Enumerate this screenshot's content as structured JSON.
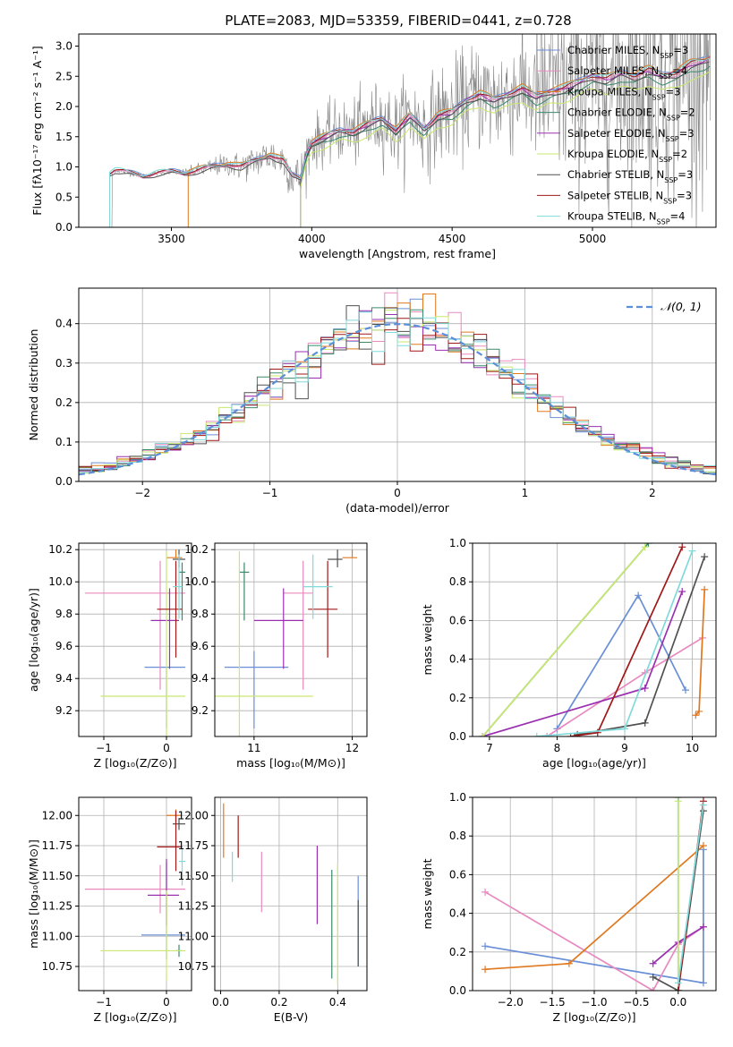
{
  "figure": {
    "title": "PLATE=2083, MJD=53359, FIBERID=0441, z=0.728"
  },
  "colors": {
    "series": [
      "#6a8fd6",
      "#e88abf",
      "#e07820",
      "#3a8a6a",
      "#9a30b0",
      "#c8e870",
      "#505050",
      "#a01818",
      "#80dada"
    ],
    "data_gray": "#888888",
    "normal": "#5b8fd8",
    "grid": "#b0b0b0"
  },
  "legend": [
    {
      "base": "Chabrier MILES, N",
      "sub": "SSP",
      "suffix": "=3"
    },
    {
      "base": "Salpeter MILES, N",
      "sub": "SSP",
      "suffix": "=4"
    },
    {
      "base": "Kroupa MILES, N",
      "sub": "SSP",
      "suffix": "=3"
    },
    {
      "base": "Chabrier ELODIE, N",
      "sub": "SSP",
      "suffix": "=2"
    },
    {
      "base": "Salpeter ELODIE, N",
      "sub": "SSP",
      "suffix": "=3"
    },
    {
      "base": "Kroupa ELODIE, N",
      "sub": "SSP",
      "suffix": "=2"
    },
    {
      "base": "Chabrier STELIB, N",
      "sub": "SSP",
      "suffix": "=3"
    },
    {
      "base": "Salpeter STELIB, N",
      "sub": "SSP",
      "suffix": "=3"
    },
    {
      "base": "Kroupa STELIB, N",
      "sub": "SSP",
      "suffix": "=4"
    }
  ],
  "chart_data": [
    {
      "id": "spectrum",
      "type": "line",
      "xlabel": "wavelength [Angstrom, rest frame]",
      "ylabel": "Flux [fλ10⁻¹⁷ erg cm⁻² s⁻¹ A⁻¹]",
      "xlim": [
        3170,
        5440
      ],
      "ylim": [
        0,
        3.2
      ],
      "xticks": [
        3500,
        4000,
        4500,
        5000
      ],
      "yticks": [
        0.0,
        0.5,
        1.0,
        1.5,
        2.0,
        2.5,
        3.0
      ],
      "data_x_range": [
        3280,
        5420
      ],
      "model_anchor_x": [
        3280,
        3300,
        3350,
        3400,
        3450,
        3500,
        3550,
        3600,
        3650,
        3700,
        3750,
        3800,
        3850,
        3900,
        3930,
        3960,
        3980,
        4000,
        4050,
        4100,
        4150,
        4200,
        4250,
        4300,
        4350,
        4400,
        4450,
        4500,
        4550,
        4600,
        4650,
        4700,
        4750,
        4800,
        4850,
        4900,
        4950,
        5000,
        5050,
        5100,
        5150,
        5200,
        5250,
        5300,
        5350,
        5400,
        5420
      ],
      "model_anchor_y": [
        0.9,
        0.95,
        0.9,
        0.85,
        0.9,
        0.92,
        0.9,
        0.95,
        1.0,
        1.05,
        1.0,
        1.1,
        1.2,
        1.1,
        0.85,
        0.8,
        1.2,
        1.4,
        1.5,
        1.6,
        1.58,
        1.7,
        1.8,
        1.6,
        1.85,
        1.62,
        1.85,
        1.9,
        2.1,
        2.2,
        2.1,
        2.2,
        2.3,
        2.15,
        2.25,
        2.3,
        2.4,
        2.5,
        2.45,
        2.55,
        2.5,
        2.6,
        2.5,
        2.55,
        2.7,
        2.75,
        2.8
      ],
      "model_offsets": [
        0.02,
        -0.01,
        0.03,
        -0.06,
        0.0,
        -0.12,
        -0.03,
        0.01,
        0.02
      ],
      "model_start_x": [
        3280,
        3280,
        3560,
        3960,
        3960,
        3960,
        3280,
        3280,
        3280
      ]
    },
    {
      "id": "residuals",
      "type": "histogram",
      "xlabel": "(data-model)/error",
      "ylabel": "Normed distribution",
      "xlim": [
        -2.5,
        2.5
      ],
      "ylim": [
        0,
        0.49
      ],
      "xticks": [
        -2,
        -1,
        0,
        1,
        2
      ],
      "yticks": [
        0.0,
        0.1,
        0.2,
        0.3,
        0.4
      ],
      "bins": 50,
      "legend": "𝒩(0, 1)"
    },
    {
      "id": "age_vs_Z",
      "type": "errorbar",
      "xlabel": "Z [log₁₀(Z/Z⊙)]",
      "ylabel": "age  [log₁₀(age/yr)]",
      "xlim": [
        -1.4,
        0.4
      ],
      "ylim": [
        9.04,
        10.24
      ],
      "xticks": [
        -1,
        0
      ],
      "yticks": [
        9.2,
        9.4,
        9.6,
        9.8,
        10.0,
        10.2
      ],
      "points": [
        {
          "x": 0.0,
          "xe": [
            0.35,
            0.3
          ],
          "y": 9.47,
          "ye": [
            0.38,
            0.0
          ]
        },
        {
          "x": -0.1,
          "xe": [
            1.2,
            0.4
          ],
          "y": 9.93,
          "ye": [
            0.6,
            0.2
          ]
        },
        {
          "x": 0.15,
          "xe": [
            0.15,
            0.1
          ],
          "y": 10.15,
          "ye": [
            0.0,
            0.05
          ]
        },
        {
          "x": 0.25,
          "xe": [
            0.05,
            0.05
          ],
          "y": 10.06,
          "ye": [
            0.3,
            0.06
          ]
        },
        {
          "x": 0.05,
          "xe": [
            0.3,
            0.15
          ],
          "y": 9.76,
          "ye": [
            0.3,
            0.2
          ]
        },
        {
          "x": 0.0,
          "xe": [
            1.05,
            0.3
          ],
          "y": 9.29,
          "ye": [
            0.3,
            0.9
          ]
        },
        {
          "x": 0.2,
          "xe": [
            0.1,
            0.1
          ],
          "y": 10.14,
          "ye": [
            0.05,
            0.06
          ]
        },
        {
          "x": 0.15,
          "xe": [
            0.3,
            0.1
          ],
          "y": 9.83,
          "ye": [
            0.3,
            0.3
          ]
        },
        {
          "x": 0.2,
          "xe": [
            0.1,
            0.05
          ],
          "y": 9.97,
          "ye": [
            0.2,
            0.2
          ]
        }
      ]
    },
    {
      "id": "age_vs_mass",
      "type": "errorbar",
      "xlabel": "mass [log₁₀(M/M⊙)]",
      "ylabel": "",
      "xlim": [
        10.6,
        12.15
      ],
      "ylim": [
        9.04,
        10.24
      ],
      "xticks": [
        11,
        12
      ],
      "yticks": [
        9.2,
        9.4,
        9.6,
        9.8,
        10.0,
        10.2
      ],
      "points": [
        {
          "x": 11.0,
          "xe": [
            0.3,
            0.35
          ],
          "y": 9.47,
          "ye": [
            0.38,
            0.1
          ]
        },
        {
          "x": 11.5,
          "xe": [
            0.2,
            0.1
          ],
          "y": 9.93,
          "ye": [
            0.6,
            0.2
          ]
        },
        {
          "x": 12.0,
          "xe": [
            0.1,
            0.05
          ],
          "y": 10.15,
          "ye": [
            0.0,
            0.05
          ]
        },
        {
          "x": 10.9,
          "xe": [
            0.05,
            0.05
          ],
          "y": 10.06,
          "ye": [
            0.3,
            0.06
          ]
        },
        {
          "x": 11.3,
          "xe": [
            0.3,
            0.2
          ],
          "y": 9.76,
          "ye": [
            0.3,
            0.2
          ]
        },
        {
          "x": 10.85,
          "xe": [
            0.25,
            0.75
          ],
          "y": 9.29,
          "ye": [
            0.3,
            0.9
          ]
        },
        {
          "x": 11.85,
          "xe": [
            0.1,
            0.05
          ],
          "y": 10.14,
          "ye": [
            0.05,
            0.06
          ]
        },
        {
          "x": 11.75,
          "xe": [
            0.2,
            0.1
          ],
          "y": 9.83,
          "ye": [
            0.3,
            0.3
          ]
        },
        {
          "x": 11.6,
          "xe": [
            0.1,
            0.2
          ],
          "y": 9.97,
          "ye": [
            0.2,
            0.2
          ]
        }
      ]
    },
    {
      "id": "weight_vs_age",
      "type": "line",
      "xlabel": "age  [log₁₀(age/yr)]",
      "ylabel": "mass weight",
      "xlim": [
        6.75,
        10.35
      ],
      "ylim": [
        0,
        1
      ],
      "xticks": [
        7,
        8,
        9,
        10
      ],
      "yticks": [
        0.0,
        0.2,
        0.4,
        0.6,
        0.8,
        1.0
      ],
      "series": [
        {
          "x": [
            8.0,
            9.2,
            9.9
          ],
          "y": [
            0.04,
            0.73,
            0.24
          ]
        },
        {
          "x": [
            7.85,
            9.3,
            10.15
          ],
          "y": [
            0.0,
            0.33,
            0.51
          ]
        },
        {
          "x": [
            10.05,
            10.1,
            10.18
          ],
          "y": [
            0.11,
            0.13,
            0.76
          ]
        },
        {
          "x": [
            6.9,
            9.35
          ],
          "y": [
            0.0,
            1.0
          ]
        },
        {
          "x": [
            6.9,
            9.3,
            9.85
          ],
          "y": [
            0.0,
            0.25,
            0.75
          ]
        },
        {
          "x": [
            6.9,
            9.3
          ],
          "y": [
            0.0,
            0.98
          ]
        },
        {
          "x": [
            8.3,
            9.3,
            10.18
          ],
          "y": [
            0.01,
            0.07,
            0.93
          ]
        },
        {
          "x": [
            8.2,
            8.6,
            9.85
          ],
          "y": [
            0.0,
            0.02,
            0.98
          ]
        },
        {
          "x": [
            7.7,
            9.0,
            10.0
          ],
          "y": [
            0.0,
            0.04,
            0.96
          ]
        }
      ]
    },
    {
      "id": "mass_vs_Z",
      "type": "errorbar",
      "xlabel": "Z [log₁₀(Z/Z⊙)]",
      "ylabel": "mass [log₁₀(M/M⊙)]",
      "xlim": [
        -1.4,
        0.4
      ],
      "ylim": [
        10.55,
        12.15
      ],
      "xticks": [
        -1,
        0
      ],
      "yticks": [
        10.75,
        11.0,
        11.25,
        11.5,
        11.75,
        12.0
      ],
      "points": [
        {
          "x": 0.0,
          "xe": [
            0.4,
            0.3
          ],
          "y": 11.01,
          "ye": [
            0.2,
            0.6
          ]
        },
        {
          "x": -0.1,
          "xe": [
            1.2,
            0.4
          ],
          "y": 11.39,
          "ye": [
            0.2,
            0.2
          ]
        },
        {
          "x": 0.15,
          "xe": [
            0.15,
            0.1
          ],
          "y": 12.0,
          "ye": [
            0.05,
            0.05
          ]
        },
        {
          "x": 0.2,
          "xe": [
            0.05,
            0.05
          ],
          "y": 10.88,
          "ye": [
            0.05,
            0.05
          ]
        },
        {
          "x": 0.0,
          "xe": [
            0.3,
            0.2
          ],
          "y": 11.34,
          "ye": [
            0.25,
            0.3
          ]
        },
        {
          "x": 0.0,
          "xe": [
            1.05,
            0.3
          ],
          "y": 10.88,
          "ye": [
            0.25,
            0.5
          ]
        },
        {
          "x": 0.2,
          "xe": [
            0.1,
            0.1
          ],
          "y": 11.93,
          "ye": [
            0.05,
            0.05
          ]
        },
        {
          "x": 0.15,
          "xe": [
            0.3,
            0.1
          ],
          "y": 11.74,
          "ye": [
            0.2,
            0.3
          ]
        },
        {
          "x": 0.25,
          "xe": [
            0.05,
            0.05
          ],
          "y": 11.62,
          "ye": [
            0.2,
            0.1
          ]
        }
      ]
    },
    {
      "id": "mass_vs_ebv",
      "type": "errorbar",
      "xlabel": "E(B-V)",
      "ylabel": "",
      "xlim": [
        -0.02,
        0.5
      ],
      "ylim": [
        10.55,
        12.15
      ],
      "xticks": [
        0.0,
        0.2,
        0.4
      ],
      "yticks": [
        10.75,
        11.0,
        11.25,
        11.5,
        11.75,
        12.0
      ],
      "points": [
        {
          "x": 0.47,
          "xe": [
            0,
            0
          ],
          "y": 11.1,
          "ye": [
            0.35,
            0.4
          ]
        },
        {
          "x": 0.14,
          "xe": [
            0,
            0
          ],
          "y": 11.45,
          "ye": [
            0.25,
            0.25
          ]
        },
        {
          "x": 0.01,
          "xe": [
            0,
            0
          ],
          "y": 11.95,
          "ye": [
            0.3,
            0.15
          ]
        },
        {
          "x": 0.38,
          "xe": [
            0,
            0
          ],
          "y": 11.2,
          "ye": [
            0.55,
            0.35
          ]
        },
        {
          "x": 0.33,
          "xe": [
            0,
            0
          ],
          "y": 11.4,
          "ye": [
            0.3,
            0.35
          ]
        },
        {
          "x": 0.4,
          "xe": [
            0,
            0
          ],
          "y": 11.2,
          "ye": [
            0.6,
            0.4
          ]
        },
        {
          "x": 0.47,
          "xe": [
            0,
            0
          ],
          "y": 11.0,
          "ye": [
            0.25,
            0.3
          ]
        },
        {
          "x": 0.06,
          "xe": [
            0,
            0
          ],
          "y": 11.8,
          "ye": [
            0.15,
            0.2
          ]
        },
        {
          "x": 0.04,
          "xe": [
            0,
            0
          ],
          "y": 11.6,
          "ye": [
            0.15,
            0.1
          ]
        }
      ]
    },
    {
      "id": "weight_vs_Z",
      "type": "line",
      "xlabel": "Z [log₁₀(Z/Z⊙)]",
      "ylabel": "mass weight",
      "xlim": [
        -2.45,
        0.45
      ],
      "ylim": [
        0,
        1
      ],
      "xticks": [
        -2.0,
        -1.5,
        -1.0,
        -0.5,
        0.0
      ],
      "yticks": [
        0.0,
        0.2,
        0.4,
        0.6,
        0.8,
        1.0
      ],
      "series": [
        {
          "x": [
            -2.3,
            0.3,
            0.3
          ],
          "y": [
            0.23,
            0.04,
            0.73
          ]
        },
        {
          "x": [
            -2.3,
            -0.3,
            0.0,
            0.3
          ],
          "y": [
            0.51,
            0.0,
            0.24,
            0.33
          ]
        },
        {
          "x": [
            -2.3,
            -1.3,
            0.3
          ],
          "y": [
            0.11,
            0.14,
            0.75
          ]
        },
        {
          "x": [
            0.0,
            0.0
          ],
          "y": [
            0.0,
            1.0
          ]
        },
        {
          "x": [
            -0.3,
            0.0,
            0.3
          ],
          "y": [
            0.14,
            0.25,
            0.33
          ]
        },
        {
          "x": [
            0.0,
            0.0
          ],
          "y": [
            0.0,
            0.98
          ]
        },
        {
          "x": [
            -0.3,
            0.0,
            0.3
          ],
          "y": [
            0.07,
            0.0,
            0.93
          ]
        },
        {
          "x": [
            0.0,
            0.3
          ],
          "y": [
            0.0,
            0.98
          ]
        },
        {
          "x": [
            0.0,
            0.3
          ],
          "y": [
            0.04,
            0.96
          ]
        }
      ]
    }
  ]
}
